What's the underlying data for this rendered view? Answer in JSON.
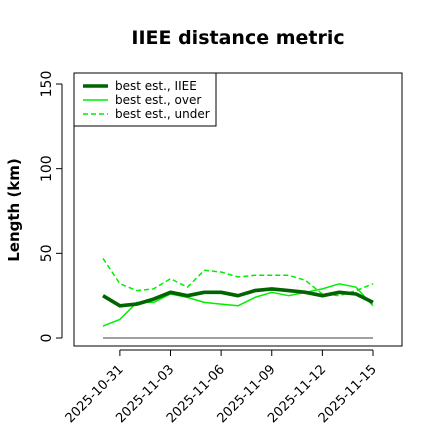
{
  "chart_data": {
    "type": "line",
    "title": "IIEE distance metric",
    "xlabel": "",
    "ylabel": "Length (km)",
    "ylim": [
      0,
      150
    ],
    "yticks": [
      0,
      50,
      100,
      150
    ],
    "xrange": [
      "2025-10-30",
      "2025-11-15"
    ],
    "xtick_labels": [
      "2025-10-31",
      "2025-11-03",
      "2025-11-06",
      "2025-11-09",
      "2025-11-12",
      "2025-11-15"
    ],
    "grid": false,
    "legend_position": "top-left",
    "x": [
      "2025-10-30",
      "2025-10-31",
      "2025-11-01",
      "2025-11-02",
      "2025-11-03",
      "2025-11-04",
      "2025-11-05",
      "2025-11-06",
      "2025-11-07",
      "2025-11-08",
      "2025-11-09",
      "2025-11-10",
      "2025-11-11",
      "2025-11-12",
      "2025-11-13",
      "2025-11-14",
      "2025-11-15"
    ],
    "series": [
      {
        "name": "best est., IIEE",
        "color": "#006400",
        "style": "solid",
        "width": "thick",
        "values": [
          25,
          19,
          20,
          23,
          27,
          25,
          27,
          27,
          25,
          28,
          29,
          28,
          27,
          25,
          27,
          26,
          21
        ]
      },
      {
        "name": "best est., over",
        "color": "#00ee00",
        "style": "solid",
        "width": "thin",
        "values": [
          7,
          11,
          21,
          21,
          26,
          24,
          21,
          20,
          19,
          24,
          27,
          25,
          27,
          29,
          32,
          30,
          19
        ]
      },
      {
        "name": "best est., under",
        "color": "#00ee00",
        "style": "dashed",
        "width": "thin",
        "values": [
          47,
          32,
          28,
          29,
          35,
          30,
          40,
          39,
          36,
          37,
          37,
          37,
          34,
          26,
          25,
          28,
          32
        ]
      }
    ],
    "reference_line": {
      "value": 0,
      "color": "#808080"
    }
  }
}
